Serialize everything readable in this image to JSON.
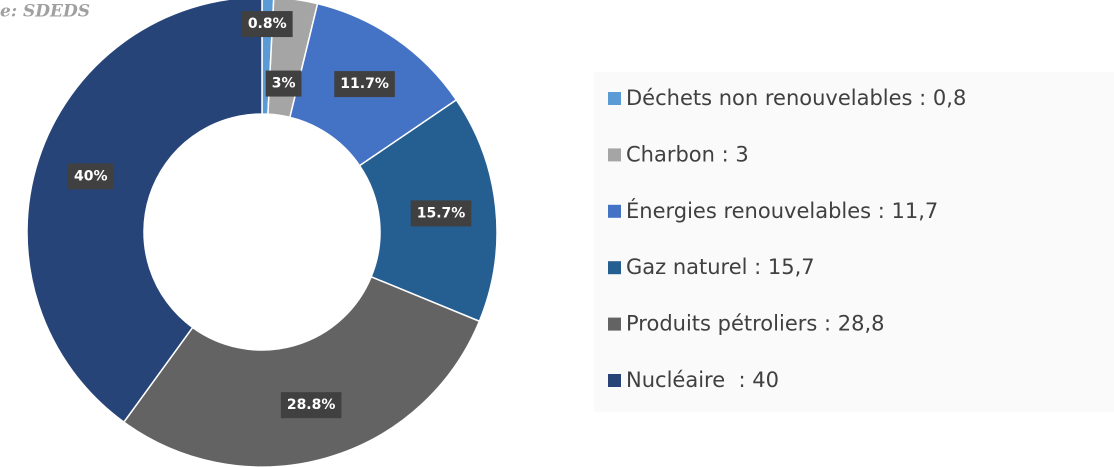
{
  "chart_data": {
    "type": "donut",
    "source": "e: SDEDS",
    "categories": [
      "Déchets non renouvelables : 0,8",
      "Charbon : 3",
      "Énergies renouvelables : 11,7",
      "Gaz naturel : 15,7",
      "Produits pétroliers : 28,8",
      "Nucléaire  : 40"
    ],
    "values": [
      0.8,
      3,
      11.7,
      15.7,
      28.8,
      40
    ],
    "value_labels": [
      "0.8%",
      "3%",
      "11.7%",
      "15.7%",
      "28.8%",
      "40%"
    ],
    "colors": [
      "#5b9bd5",
      "#a5a5a5",
      "#4472c4",
      "#255e91",
      "#636363",
      "#264478"
    ]
  }
}
